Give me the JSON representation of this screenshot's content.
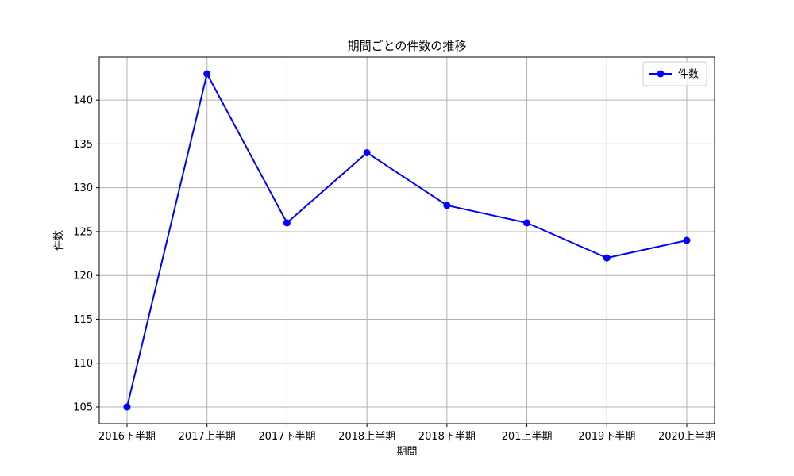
{
  "chart_data": {
    "type": "line",
    "title": "期間ごとの件数の推移",
    "xlabel": "期間",
    "ylabel": "件数",
    "categories": [
      "2016下半期",
      "2017上半期",
      "2017下半期",
      "2018上半期",
      "2018下半期",
      "201上半期",
      "2019下半期",
      "2020上半期"
    ],
    "series": [
      {
        "name": "件数",
        "values": [
          105,
          143,
          126,
          134,
          128,
          126,
          122,
          124
        ],
        "color": "#0000ff",
        "marker": "circle"
      }
    ],
    "ylim": [
      103.1,
      144.9
    ],
    "yticks": [
      105,
      110,
      115,
      120,
      125,
      130,
      135,
      140
    ],
    "grid": true,
    "legend_position": "top-right"
  }
}
